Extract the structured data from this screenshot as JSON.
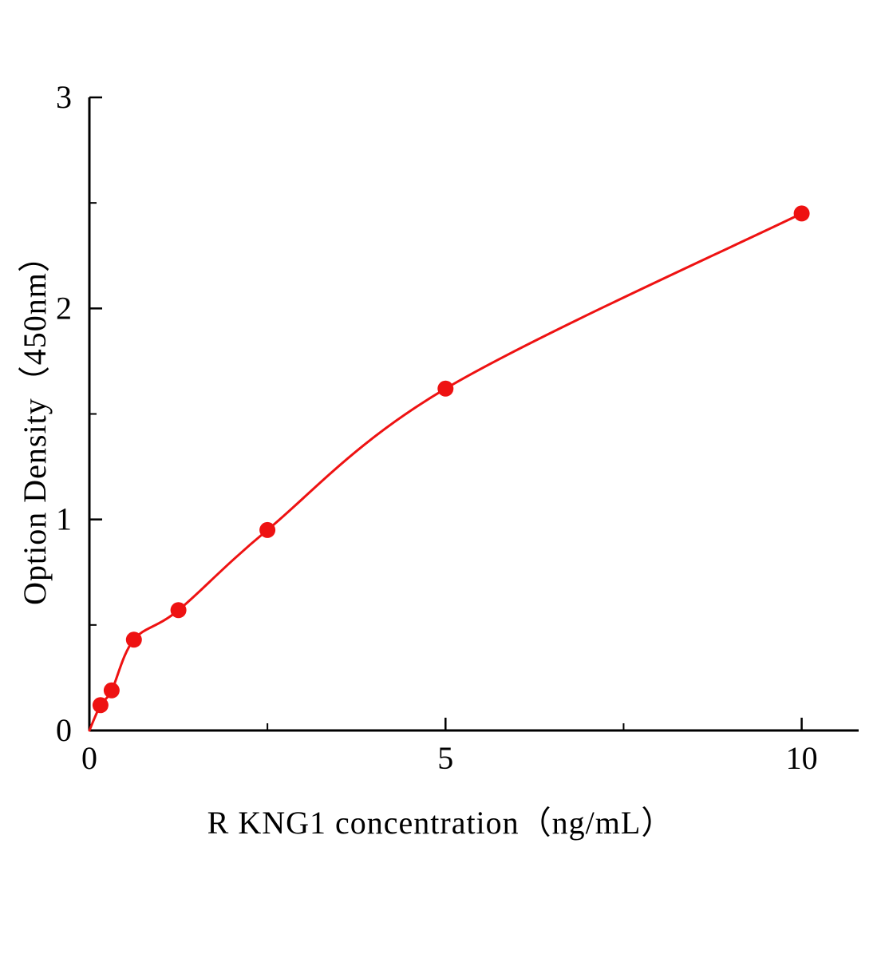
{
  "chart_data": {
    "type": "scatter",
    "title": "",
    "xlabel": "R KNG1  concentration（ng/mL）",
    "ylabel": "Option Density（450nm）",
    "x": [
      0.156,
      0.3125,
      0.625,
      1.25,
      2.5,
      5,
      10
    ],
    "y": [
      0.12,
      0.19,
      0.43,
      0.57,
      0.95,
      1.62,
      2.45
    ],
    "curve_origin": [
      0,
      0
    ],
    "xlim": [
      0,
      10.8
    ],
    "ylim": [
      0,
      3
    ],
    "xticks": [
      0,
      5,
      10
    ],
    "yticks": [
      0,
      1,
      2,
      3
    ],
    "x_minor_ticks": [
      2.5,
      7.5
    ],
    "y_minor_ticks": [
      0.5,
      1.5,
      2.5
    ],
    "grid": "off",
    "legend": "none",
    "point_color": "#ee1212",
    "line_color": "#ee1212",
    "axis_color": "#000000",
    "background_color": "#ffffff",
    "marker_radius": 10,
    "curve_width": 3,
    "axis_width": 3
  }
}
